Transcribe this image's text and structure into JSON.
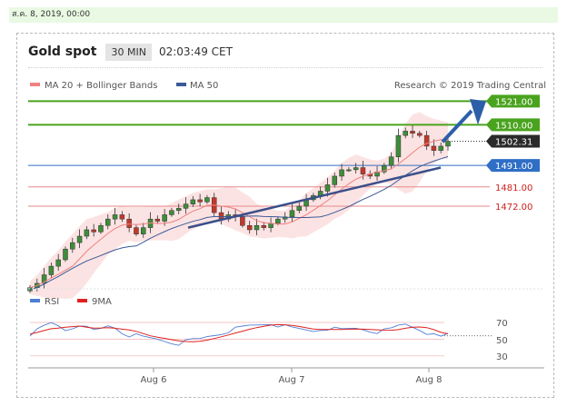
{
  "date_banner": "ส.ค. 8, 2019, 00:00",
  "header": {
    "title": "Gold spot",
    "timeframe": "30 MIN",
    "time": "02:03:49 CET"
  },
  "legend": {
    "ma20": "MA 20 + Bollinger Bands",
    "ma20_color": "#f08080",
    "ma50": "MA 50",
    "ma50_color": "#3a5a98"
  },
  "copyright": "Research © 2019 Trading Central",
  "colors": {
    "up": "#3d8d3a",
    "down": "#c0392b",
    "target": "#4aa31e",
    "support": "#2f6ec6",
    "resistance": "#e58a8a"
  },
  "chart_data": [
    {
      "type": "candlestick",
      "title": "Gold spot",
      "x_ticks": [
        "Aug 6",
        "Aug 7",
        "Aug 8"
      ],
      "ylim": [
        1425,
        1530
      ],
      "levels": [
        {
          "label": "1521.00",
          "value": 1521.0,
          "kind": "target"
        },
        {
          "label": "1510.00",
          "value": 1510.0,
          "kind": "target"
        },
        {
          "label": "1502.31",
          "value": 1502.31,
          "kind": "last"
        },
        {
          "label": "1491.00",
          "value": 1491.0,
          "kind": "pivot"
        },
        {
          "label": "1481.00",
          "value": 1481.0,
          "kind": "support"
        },
        {
          "label": "1472.00",
          "value": 1472.0,
          "kind": "support"
        }
      ],
      "series": [
        {
          "name": "MA 20 + Bollinger Bands",
          "type": "line"
        },
        {
          "name": "MA 50",
          "type": "line"
        }
      ],
      "close_path": [
        1434,
        1436,
        1440,
        1444,
        1447,
        1452,
        1455,
        1458,
        1461,
        1460,
        1463,
        1466,
        1468,
        1466,
        1462,
        1459,
        1462,
        1466,
        1465,
        1468,
        1470,
        1471,
        1473,
        1475,
        1474,
        1476,
        1469,
        1466,
        1468,
        1467,
        1463,
        1461,
        1463,
        1462,
        1464,
        1466,
        1467,
        1470,
        1472,
        1475,
        1477,
        1479,
        1482,
        1486,
        1489,
        1489,
        1490,
        1487,
        1486,
        1488,
        1491,
        1495,
        1505,
        1507,
        1506,
        1505,
        1500,
        1498,
        1500,
        1502.31
      ]
    },
    {
      "type": "line",
      "title": "RSI",
      "series": [
        {
          "name": "RSI"
        },
        {
          "name": "9MA"
        }
      ],
      "y_ticks": [
        70,
        50,
        30
      ],
      "ylim": [
        20,
        80
      ]
    }
  ],
  "rsi": {
    "rsi_label": "RSI",
    "ma_label": "9MA",
    "rsi_color": "#4e7ed6",
    "ma_color": "#e02020",
    "tick70": "70",
    "tick50": "50",
    "tick30": "30",
    "values": [
      56,
      60,
      65,
      69,
      66,
      61,
      64,
      68,
      63,
      60,
      62,
      66,
      64,
      58,
      55,
      54,
      52,
      51,
      50,
      48,
      46,
      45,
      47,
      49,
      50,
      53,
      55,
      57,
      60,
      62,
      64,
      66,
      67,
      68,
      69,
      67,
      65,
      63,
      62,
      61,
      60,
      62,
      63,
      62,
      61,
      62,
      63,
      62,
      60,
      59,
      60,
      62,
      66,
      68,
      65,
      62,
      58,
      54,
      52,
      56
    ]
  }
}
